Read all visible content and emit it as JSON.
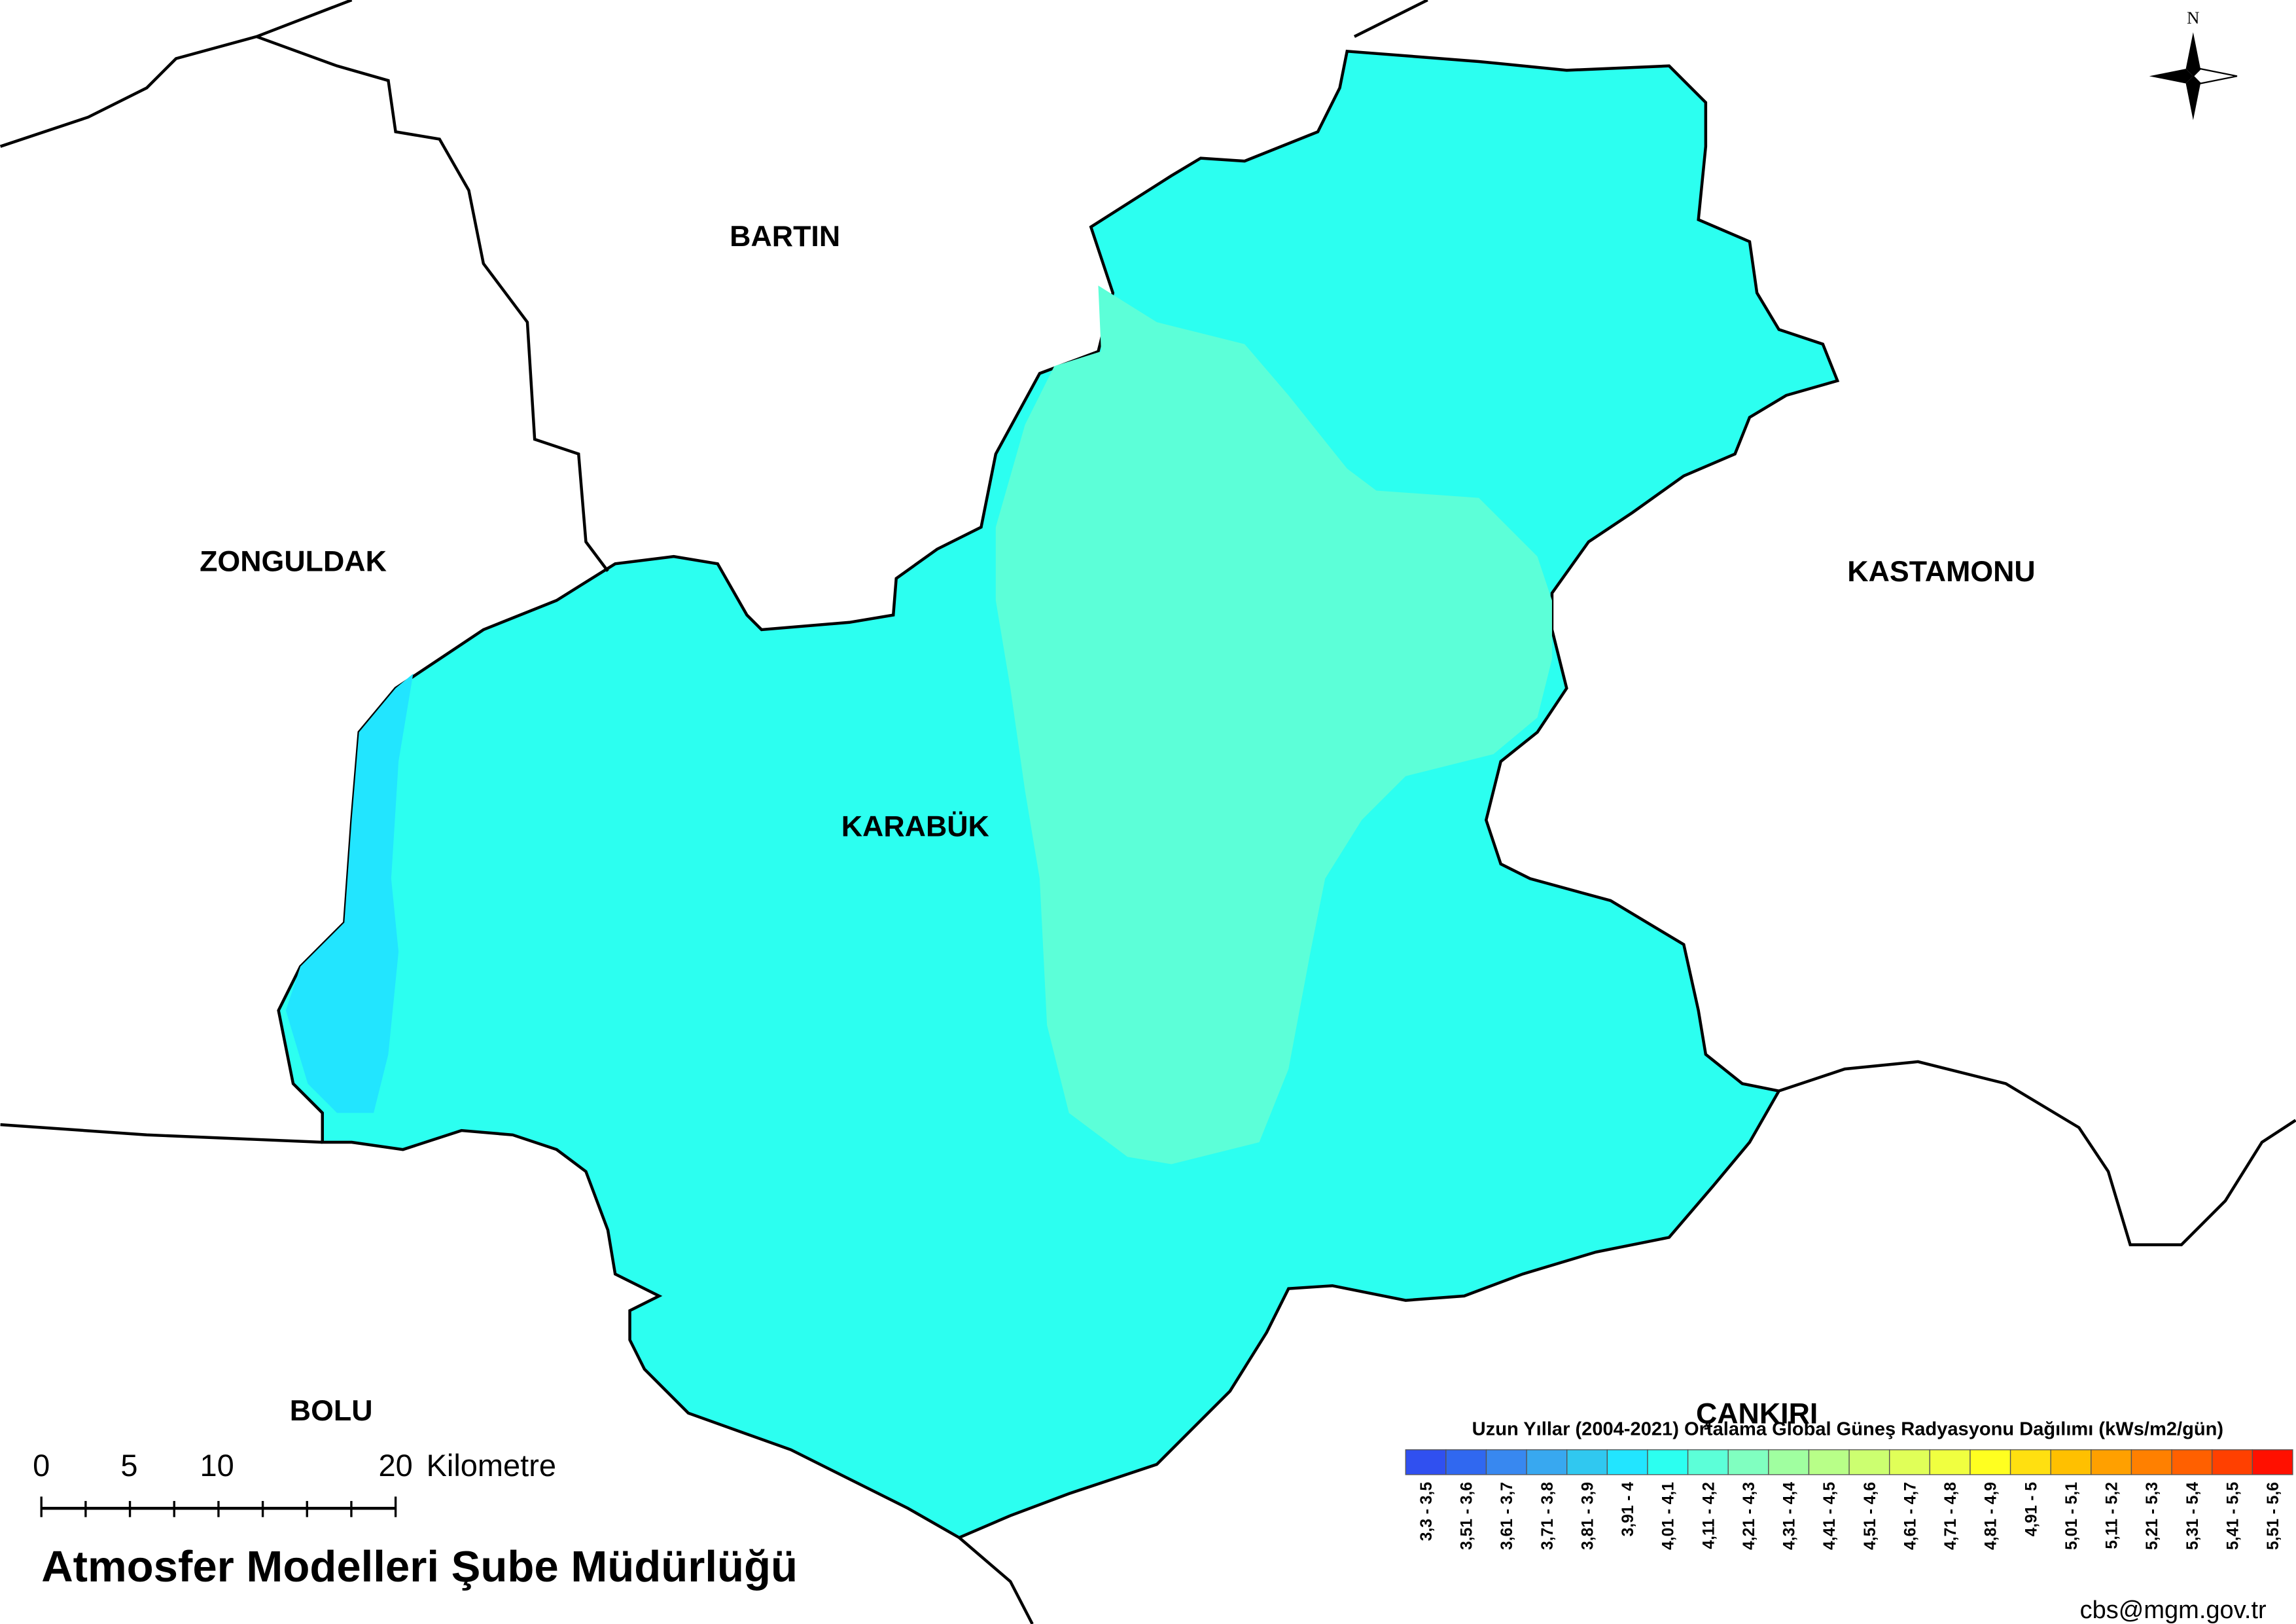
{
  "map": {
    "provinces": [
      "BARTIN",
      "ZONGULDAK",
      "KASTAMONU",
      "KARABÜK",
      "BOLU",
      "ÇANKIRI"
    ],
    "north": "N",
    "scale_bar": {
      "labels": [
        "0",
        "5",
        "10",
        "20"
      ],
      "unit": "Kilometre"
    },
    "footer": "Atmosfer Modelleri Şube Müdürlüğü",
    "contact": "cbs@mgm.gov.tr",
    "legend": {
      "title": "Uzun Yıllar (2004-2021) Ortalama Global Güneş Radyasyonu Dağılımı (kWs/m2/gün)",
      "items": [
        {
          "label": "3,3 - 3,5",
          "color": "#3050f0"
        },
        {
          "label": "3,51 - 3,6",
          "color": "#3068f0"
        },
        {
          "label": "3,61 - 3,7",
          "color": "#3888f0"
        },
        {
          "label": "3,71 - 3,8",
          "color": "#38a8f0"
        },
        {
          "label": "3,81 - 3,9",
          "color": "#30c8f0"
        },
        {
          "label": "3,91 - 4",
          "color": "#22e5ff"
        },
        {
          "label": "4,01 - 4,1",
          "color": "#2cfff0"
        },
        {
          "label": "4,11 - 4,2",
          "color": "#5cffd8"
        },
        {
          "label": "4,21 - 4,3",
          "color": "#80ffc0"
        },
        {
          "label": "4,31 - 4,4",
          "color": "#a0ffa0"
        },
        {
          "label": "4,41 - 4,5",
          "color": "#b8ff88"
        },
        {
          "label": "4,51 - 4,6",
          "color": "#ccff70"
        },
        {
          "label": "4,61 - 4,7",
          "color": "#e0ff58"
        },
        {
          "label": "4,71 - 4,8",
          "color": "#f0ff40"
        },
        {
          "label": "4,81 - 4,9",
          "color": "#ffff20"
        },
        {
          "label": "4,91 - 5",
          "color": "#ffe010"
        },
        {
          "label": "5,01 - 5,1",
          "color": "#ffc000"
        },
        {
          "label": "5,11 - 5,2",
          "color": "#ffa000"
        },
        {
          "label": "5,21 - 5,3",
          "color": "#ff8000"
        },
        {
          "label": "5,31 - 5,4",
          "color": "#ff6000"
        },
        {
          "label": "5,41 - 5,5",
          "color": "#ff4000"
        },
        {
          "label": "5,51 - 5,6",
          "color": "#ff1000"
        }
      ]
    }
  }
}
